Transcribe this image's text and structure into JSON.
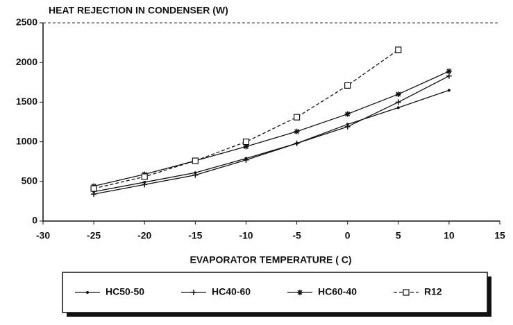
{
  "chart_data": {
    "type": "line",
    "title": "HEAT REJECTION IN CONDENSER (W)",
    "x_label": "EVAPORATOR TEMPERATURE ( C)",
    "x": [
      -25,
      -20,
      -15,
      -10,
      -5,
      0,
      5,
      10
    ],
    "series": [
      {
        "name": "HC50-50",
        "color": "#111111",
        "marker": "dot",
        "dash": false,
        "values": [
          370,
          490,
          610,
          790,
          980,
          1220,
          1430,
          1650
        ]
      },
      {
        "name": "HC40-60",
        "color": "#111111",
        "marker": "plus",
        "dash": false,
        "values": [
          340,
          460,
          580,
          770,
          980,
          1190,
          1500,
          1830
        ]
      },
      {
        "name": "HC60-40",
        "color": "#111111",
        "marker": "star",
        "dash": false,
        "values": [
          440,
          590,
          760,
          940,
          1130,
          1350,
          1600,
          1890
        ]
      },
      {
        "name": "R12",
        "color": "#111111",
        "marker": "square",
        "dash": true,
        "values": [
          410,
          560,
          760,
          1000,
          1310,
          1710,
          2160,
          null
        ]
      }
    ],
    "xlim": [
      -30,
      15
    ],
    "xticks": [
      -30,
      -25,
      -20,
      -15,
      -10,
      -5,
      0,
      5,
      10,
      15
    ],
    "ylim": [
      0,
      2500
    ],
    "yticks": [
      0,
      500,
      1000,
      1500,
      2000,
      2500
    ],
    "legend": "bottom"
  }
}
